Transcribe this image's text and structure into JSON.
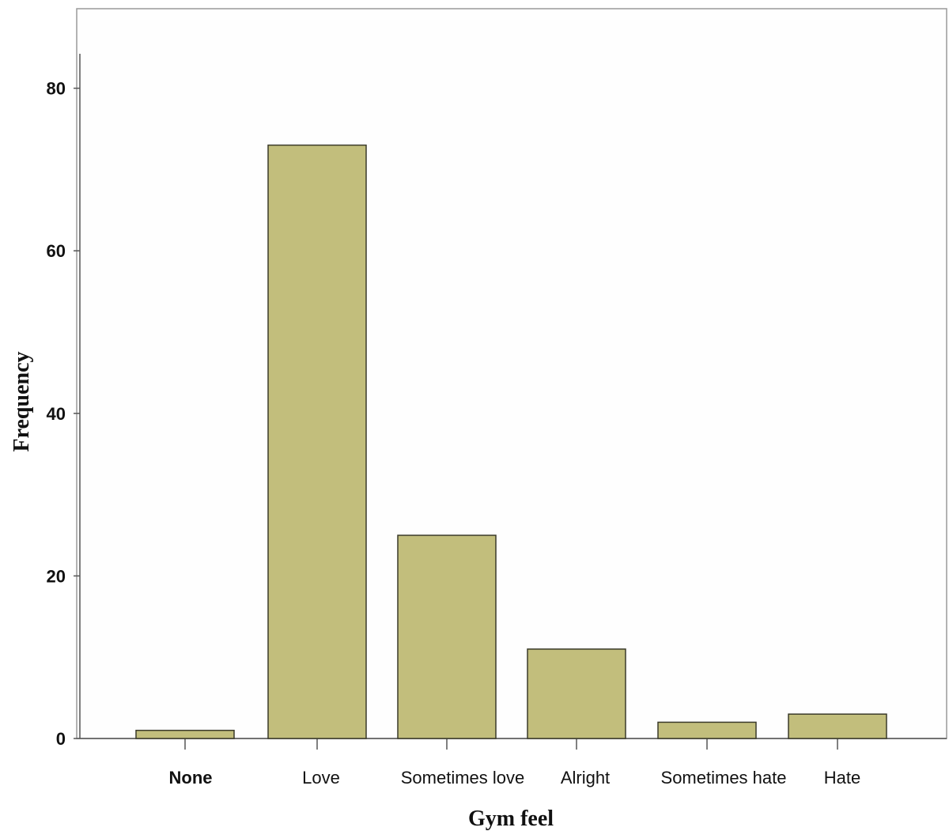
{
  "chart_data": {
    "type": "bar",
    "categories": [
      "None",
      "Love",
      "Sometimes love",
      "Alright",
      "Sometimes hate",
      "Hate"
    ],
    "values": [
      1,
      73,
      25,
      11,
      2,
      3
    ],
    "xlabel": "Gym feel",
    "ylabel": "Frequency",
    "ylim": [
      0,
      85
    ],
    "yticks": [
      0,
      20,
      40,
      60,
      80
    ],
    "bar_color": "#c2be7c",
    "bar_edge_color": "#3a3a2a",
    "grid": false
  }
}
